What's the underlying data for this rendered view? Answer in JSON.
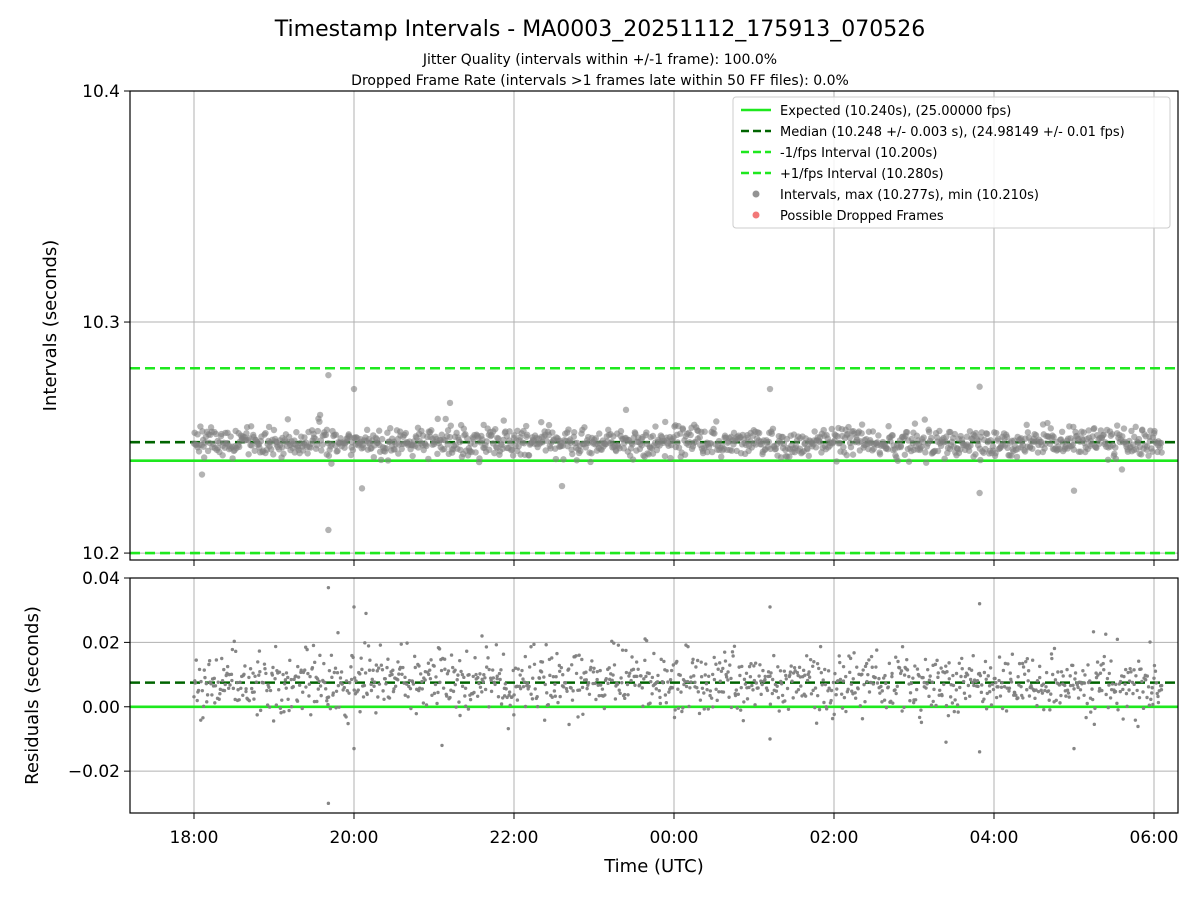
{
  "figure": {
    "title": "Timestamp Intervals - MA0003_20251112_175913_070526",
    "subtitle1": "Jitter Quality (intervals within +/-1 frame): 100.0%",
    "subtitle2": "Dropped Frame Rate (intervals >1 frames late within 50 FF files): 0.0%"
  },
  "colors": {
    "expected": "#1ee81e",
    "median": "#006400",
    "interval_band": "#1ee81e",
    "points": "#808080",
    "dropped": "#f06060",
    "grid": "#b0b0b0"
  },
  "chart_data": [
    {
      "type": "scatter",
      "name": "intervals",
      "ylabel": "Intervals (seconds)",
      "xlabel": "",
      "x_unit": "hours since 18:00 UTC",
      "xlim": [
        -0.8,
        12.3
      ],
      "ylim": [
        10.197,
        10.4
      ],
      "yticks": [
        10.2,
        10.3,
        10.4
      ],
      "ytick_labels": [
        "10.2",
        "10.3",
        "10.4"
      ],
      "grid": true,
      "legend_position": "top-right",
      "reference_lines": [
        {
          "name": "expected",
          "y": 10.24,
          "style": "solid",
          "color": "#1ee81e"
        },
        {
          "name": "median",
          "y": 10.248,
          "style": "dashed",
          "color": "#006400"
        },
        {
          "name": "minus-1-fps",
          "y": 10.2,
          "style": "dashed",
          "color": "#1ee81e"
        },
        {
          "name": "plus-1-fps",
          "y": 10.28,
          "style": "dashed",
          "color": "#1ee81e"
        }
      ],
      "legend": [
        {
          "label": "Expected (10.240s), (25.00000 fps)",
          "kind": "line",
          "color": "#1ee81e",
          "dashed": false
        },
        {
          "label": "Median (10.248 +/- 0.003 s), (24.98149 +/- 0.01 fps)",
          "kind": "line",
          "color": "#006400",
          "dashed": true
        },
        {
          "label": "-1/fps Interval (10.200s)",
          "kind": "line",
          "color": "#1ee81e",
          "dashed": true
        },
        {
          "label": "+1/fps Interval (10.280s)",
          "kind": "line",
          "color": "#1ee81e",
          "dashed": true
        },
        {
          "label": "Intervals, max (10.277s), min (10.210s)",
          "kind": "dot",
          "color": "#808080",
          "dashed": false
        },
        {
          "label": "Possible Dropped Frames",
          "kind": "dot",
          "color": "#f06060",
          "dashed": false
        }
      ],
      "series": {
        "name": "Intervals",
        "count": 1200,
        "x_range": [
          0.0,
          12.1
        ],
        "center": 10.248,
        "std": 0.0035,
        "outliers": [
          {
            "x": 1.68,
            "y": 10.277
          },
          {
            "x": 1.68,
            "y": 10.21
          },
          {
            "x": 2.0,
            "y": 10.271
          },
          {
            "x": 2.1,
            "y": 10.228
          },
          {
            "x": 9.82,
            "y": 10.272
          },
          {
            "x": 9.82,
            "y": 10.226
          },
          {
            "x": 11.0,
            "y": 10.227
          },
          {
            "x": 7.2,
            "y": 10.271
          },
          {
            "x": 0.1,
            "y": 10.234
          },
          {
            "x": 4.6,
            "y": 10.229
          },
          {
            "x": 5.4,
            "y": 10.262
          },
          {
            "x": 3.2,
            "y": 10.265
          }
        ]
      },
      "dropped_frames": []
    },
    {
      "type": "scatter",
      "name": "residuals",
      "ylabel": "Residuals (seconds)",
      "xlabel": "Time (UTC)",
      "x_unit": "hours since 18:00 UTC",
      "xlim": [
        -0.8,
        12.3
      ],
      "ylim": [
        -0.033,
        0.04
      ],
      "yticks": [
        -0.02,
        0.0,
        0.02,
        0.04
      ],
      "ytick_labels": [
        "−0.02",
        "0.00",
        "0.02",
        "0.04"
      ],
      "xticks": [
        0,
        2,
        4,
        6,
        8,
        10,
        12
      ],
      "xtick_labels": [
        "18:00",
        "20:00",
        "22:00",
        "00:00",
        "02:00",
        "04:00",
        "06:00"
      ],
      "grid": true,
      "reference_lines": [
        {
          "name": "zero",
          "y": 0.0,
          "style": "solid",
          "color": "#1ee81e"
        },
        {
          "name": "median-residual",
          "y": 0.0075,
          "style": "dashed",
          "color": "#006400"
        }
      ],
      "series": {
        "name": "Residuals",
        "count": 1200,
        "x_range": [
          0.0,
          12.1
        ],
        "center": 0.0075,
        "std": 0.005,
        "outliers": [
          {
            "x": 1.68,
            "y": 0.037
          },
          {
            "x": 1.68,
            "y": -0.03
          },
          {
            "x": 2.0,
            "y": 0.031
          },
          {
            "x": 2.0,
            "y": -0.013
          },
          {
            "x": 2.15,
            "y": 0.029
          },
          {
            "x": 1.8,
            "y": 0.023
          },
          {
            "x": 9.82,
            "y": 0.032
          },
          {
            "x": 9.82,
            "y": -0.014
          },
          {
            "x": 11.0,
            "y": -0.013
          },
          {
            "x": 7.2,
            "y": 0.031
          },
          {
            "x": 7.2,
            "y": -0.01
          },
          {
            "x": 9.4,
            "y": -0.011
          },
          {
            "x": 3.6,
            "y": 0.022
          },
          {
            "x": 3.1,
            "y": -0.012
          }
        ]
      }
    }
  ]
}
